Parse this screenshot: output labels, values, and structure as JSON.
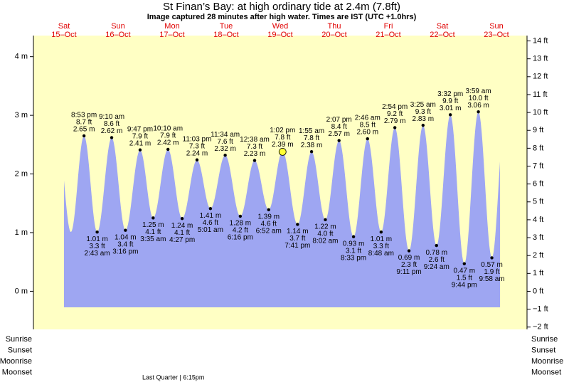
{
  "chart_data": {
    "type": "area",
    "title": "St Finan’s Bay: at high  ordinary tide at 2.4m (7.8ft)",
    "subtitle": "Image captured 28 minutes after high water. Times are IST (UTC +1.0hrs)",
    "color": "#9ea6f2",
    "background": "#ffffc4",
    "marker_color": "#ffff33",
    "ylim": [
      -0.65,
      4.36
    ],
    "yticks": [
      {
        "value": 0,
        "label": "0 m"
      },
      {
        "value": 1,
        "label": "1 m"
      },
      {
        "value": 2,
        "label": "2 m"
      },
      {
        "value": 3,
        "label": "3 m"
      },
      {
        "value": 4,
        "label": "4 m"
      }
    ],
    "y2lim": [
      -2.13,
      14.3
    ],
    "y2ticks": [
      {
        "value": -2,
        "label": "−2 ft"
      },
      {
        "value": -1,
        "label": "−1 ft"
      },
      {
        "value": 0,
        "label": "0 ft"
      },
      {
        "value": 1,
        "label": "1 ft"
      },
      {
        "value": 2,
        "label": "2 ft"
      },
      {
        "value": 3,
        "label": "3 ft"
      },
      {
        "value": 4,
        "label": "4 ft"
      },
      {
        "value": 5,
        "label": "5 ft"
      },
      {
        "value": 6,
        "label": "6 ft"
      },
      {
        "value": 7,
        "label": "7 ft"
      },
      {
        "value": 8,
        "label": "8 ft"
      },
      {
        "value": 9,
        "label": "9 ft"
      },
      {
        "value": 10,
        "label": "10 ft"
      },
      {
        "value": 11,
        "label": "11 ft"
      },
      {
        "value": 12,
        "label": "12 ft"
      },
      {
        "value": 13,
        "label": "13 ft"
      },
      {
        "value": 14,
        "label": "14 ft"
      }
    ],
    "days": [
      {
        "weekday": "Sat",
        "date": "15–Oct",
        "events": [
          {
            "time": "8:53 pm",
            "values": [
              2.65,
              8.7
            ],
            "value_labels": [
              "2.65 m",
              "8.7 ft"
            ]
          }
        ]
      },
      {
        "weekday": "Sun",
        "date": "16–Oct",
        "events": [
          {
            "time": "2:43 am",
            "values": [
              1.01,
              3.3
            ],
            "value_labels": [
              "1.01 m",
              "3.3 ft"
            ]
          },
          {
            "time": "9:10 am",
            "values": [
              2.62,
              8.6
            ],
            "value_labels": [
              "2.62 m",
              "8.6 ft"
            ]
          },
          {
            "time": "3:16 pm",
            "values": [
              1.04,
              3.4
            ],
            "value_labels": [
              "1.04 m",
              "3.4 ft"
            ]
          },
          {
            "time": "9:47 pm",
            "values": [
              2.41,
              7.9
            ],
            "value_labels": [
              "2.41 m",
              "7.9 ft"
            ]
          }
        ]
      },
      {
        "weekday": "Mon",
        "date": "17–Oct",
        "events": [
          {
            "time": "3:35 am",
            "values": [
              1.25,
              4.1
            ],
            "value_labels": [
              "1.25 m",
              "4.1 ft"
            ]
          },
          {
            "time": "10:10 am",
            "values": [
              2.42,
              7.9
            ],
            "value_labels": [
              "2.42 m",
              "7.9 ft"
            ]
          },
          {
            "time": "4:27 pm",
            "values": [
              1.24,
              4.1
            ],
            "value_labels": [
              "1.24 m",
              "4.1 ft"
            ]
          },
          {
            "time": "11:03 pm",
            "values": [
              2.24,
              7.3
            ],
            "value_labels": [
              "2.24 m",
              "7.3 ft"
            ]
          }
        ]
      },
      {
        "weekday": "Tue",
        "date": "18–Oct",
        "events": [
          {
            "time": "5:01 am",
            "values": [
              1.41,
              4.6
            ],
            "value_labels": [
              "1.41 m",
              "4.6 ft"
            ]
          },
          {
            "time": "11:34 am",
            "values": [
              2.32,
              7.6
            ],
            "value_labels": [
              "2.32 m",
              "7.6 ft"
            ]
          },
          {
            "time": "6:16 pm",
            "values": [
              1.28,
              4.2
            ],
            "value_labels": [
              "1.28 m",
              "4.2 ft"
            ]
          }
        ]
      },
      {
        "weekday": "Wed",
        "date": "19–Oct",
        "events": [
          {
            "time": "12:38 am",
            "values": [
              2.23,
              7.3
            ],
            "value_labels": [
              "2.23 m",
              "7.3 ft"
            ]
          },
          {
            "time": "6:52 am",
            "values": [
              1.39,
              4.6
            ],
            "value_labels": [
              "1.39 m",
              "4.6 ft"
            ]
          },
          {
            "time": "1:02 pm",
            "values": [
              2.39,
              7.8
            ],
            "value_labels": [
              "2.39 m",
              "7.8 ft"
            ]
          },
          {
            "time": "7:41 pm",
            "values": [
              1.14,
              3.7
            ],
            "value_labels": [
              "1.14 m",
              "3.7 ft"
            ]
          }
        ]
      },
      {
        "weekday": "Thu",
        "date": "20–Oct",
        "events": [
          {
            "time": "1:55 am",
            "values": [
              2.38,
              7.8
            ],
            "value_labels": [
              "2.38 m",
              "7.8 ft"
            ]
          },
          {
            "time": "8:02 am",
            "values": [
              1.22,
              4.0
            ],
            "value_labels": [
              "1.22 m",
              "4.0 ft"
            ]
          },
          {
            "time": "2:07 pm",
            "values": [
              2.57,
              8.4
            ],
            "value_labels": [
              "2.57 m",
              "8.4 ft"
            ]
          },
          {
            "time": "8:33 pm",
            "values": [
              0.93,
              3.1
            ],
            "value_labels": [
              "0.93 m",
              "3.1 ft"
            ]
          }
        ]
      },
      {
        "weekday": "Fri",
        "date": "21–Oct",
        "events": [
          {
            "time": "2:46 am",
            "values": [
              2.6,
              8.5
            ],
            "value_labels": [
              "2.60 m",
              "8.5 ft"
            ]
          },
          {
            "time": "8:48 am",
            "values": [
              1.01,
              3.3
            ],
            "value_labels": [
              "1.01 m",
              "3.3 ft"
            ]
          },
          {
            "time": "2:54 pm",
            "values": [
              2.79,
              9.2
            ],
            "value_labels": [
              "2.79 m",
              "9.2 ft"
            ]
          },
          {
            "time": "9:11 pm",
            "values": [
              0.69,
              2.3
            ],
            "value_labels": [
              "0.69 m",
              "2.3 ft"
            ]
          }
        ]
      },
      {
        "weekday": "Sat",
        "date": "22–Oct",
        "events": [
          {
            "time": "3:25 am",
            "values": [
              2.83,
              9.3
            ],
            "value_labels": [
              "2.83 m",
              "9.3 ft"
            ]
          },
          {
            "time": "9:24 am",
            "values": [
              0.78,
              2.6
            ],
            "value_labels": [
              "0.78 m",
              "2.6 ft"
            ]
          },
          {
            "time": "3:32 pm",
            "values": [
              3.01,
              9.9
            ],
            "value_labels": [
              "3.01 m",
              "9.9 ft"
            ]
          },
          {
            "time": "9:44 pm",
            "values": [
              0.47,
              1.5
            ],
            "value_labels": [
              "0.47 m",
              "1.5 ft"
            ]
          }
        ]
      },
      {
        "weekday": "Sun",
        "date": "23–Oct",
        "events": [
          {
            "time": "3:59 am",
            "values": [
              3.06,
              10.0
            ],
            "value_labels": [
              "3.06 m",
              "10.0 ft"
            ]
          },
          {
            "time": "9:58 am",
            "values": [
              0.57,
              1.9
            ],
            "value_labels": [
              "0.57 m",
              "1.9 ft"
            ]
          }
        ]
      }
    ],
    "rows": [
      "Sunrise",
      "Sunset",
      "Moonrise",
      "Moonset"
    ],
    "moon_phase": "Last Quarter | 6:15pm"
  }
}
